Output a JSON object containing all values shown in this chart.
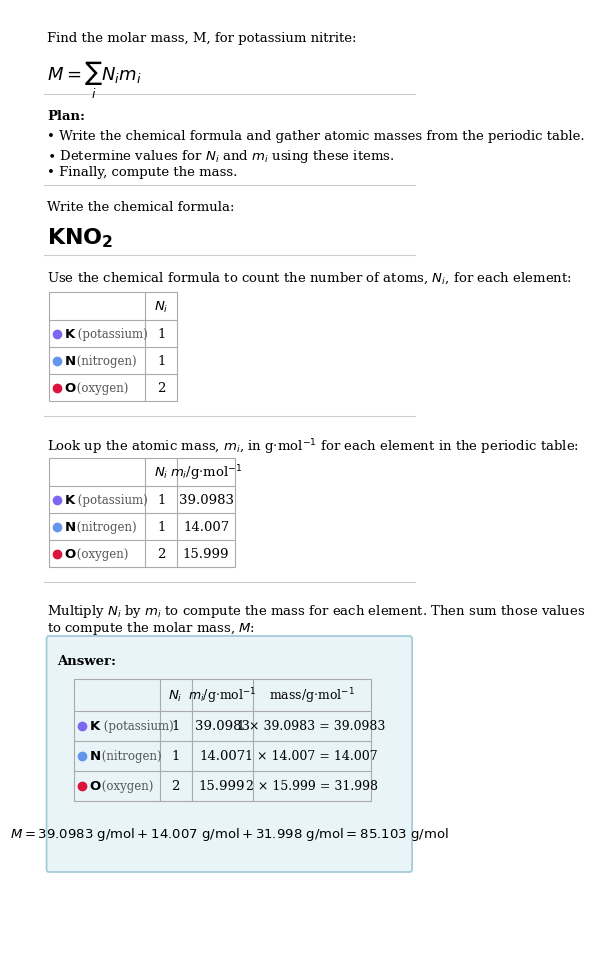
{
  "title_line1": "Find the molar mass, M, for potassium nitrite:",
  "formula_label": "Write the chemical formula:",
  "formula": "KNO",
  "formula_sub": "2",
  "plan_label": "Plan:",
  "plan_bullets": [
    "• Write the chemical formula and gather atomic masses from the periodic table.",
    "• Determine values for Nᵢ and mᵢ using these items.",
    "• Finally, compute the mass."
  ],
  "table1_label": "Use the chemical formula to count the number of atoms, Nᵢ, for each element:",
  "table2_label": "Look up the atomic mass, mᵢ, in g·mol⁻¹ for each element in the periodic table:",
  "table3_label": "Multiply Nᵢ by mᵢ to compute the mass for each element. Then sum those values\nto compute the molar mass, M:",
  "elements": [
    "K",
    "N",
    "O"
  ],
  "element_names": [
    "potassium",
    "nitrogen",
    "oxygen"
  ],
  "element_colors": [
    "#7B68EE",
    "#6495ED",
    "#DC143C"
  ],
  "Ni": [
    1,
    1,
    2
  ],
  "mi": [
    "39.0983",
    "14.007",
    "15.999"
  ],
  "mass_expr": [
    "1 × 39.0983 = 39.0983",
    "1 × 14.007 = 14.007",
    "2 × 15.999 = 31.998"
  ],
  "final_eq": "M = 39.0983 g/mol + 14.007 g/mol + 31.998 g/mol = 85.103 g/mol",
  "answer_bg": "#E8F4F8",
  "answer_border": "#A0C8D8",
  "bg_color": "#FFFFFF",
  "text_color": "#000000",
  "divider_color": "#CCCCCC"
}
